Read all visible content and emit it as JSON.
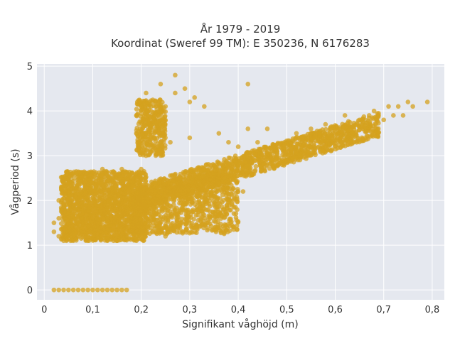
{
  "chart_data": {
    "type": "scatter",
    "title": "År 1979 - 2019",
    "subtitle": "Koordinat (Sweref 99 TM): E 350236, N 6176283",
    "xlabel": "Signifikant våghöjd (m)",
    "ylabel": "Vågperiod (s)",
    "xlim": [
      -0.015,
      0.825
    ],
    "ylim": [
      -0.22,
      5.05
    ],
    "xticks": [
      0,
      0.1,
      0.2,
      0.3,
      0.4,
      0.5,
      0.6,
      0.7,
      0.8
    ],
    "xtick_labels": [
      "0",
      "0,1",
      "0,2",
      "0,3",
      "0,4",
      "0,5",
      "0,6",
      "0,7",
      "0,8"
    ],
    "yticks": [
      0,
      1,
      2,
      3,
      4,
      5
    ],
    "ytick_labels": [
      "0",
      "1",
      "2",
      "3",
      "4",
      "5"
    ],
    "grid": true,
    "marker_color": "#D4A21F",
    "background_color": "#E5E8EF",
    "series": [
      {
        "points": [
          [
            0.02,
            0
          ],
          [
            0.03,
            0
          ],
          [
            0.04,
            0
          ],
          [
            0.05,
            0
          ],
          [
            0.06,
            0
          ],
          [
            0.07,
            0
          ],
          [
            0.08,
            0
          ],
          [
            0.09,
            0
          ],
          [
            0.1,
            0
          ],
          [
            0.11,
            0
          ],
          [
            0.12,
            0
          ],
          [
            0.13,
            0
          ],
          [
            0.14,
            0
          ],
          [
            0.15,
            0
          ],
          [
            0.16,
            0
          ],
          [
            0.17,
            0
          ],
          [
            0.02,
            1.5
          ],
          [
            0.02,
            1.3
          ],
          [
            0.03,
            1.2
          ],
          [
            0.03,
            1.6
          ],
          [
            0.03,
            2.0
          ],
          [
            0.04,
            1.9
          ],
          [
            0.04,
            2.4
          ],
          [
            0.04,
            1.1
          ],
          [
            0.05,
            1.5
          ],
          [
            0.05,
            2.5
          ],
          [
            0.06,
            1.1
          ],
          [
            0.06,
            2.6
          ],
          [
            0.07,
            1.8
          ],
          [
            0.08,
            2.6
          ],
          [
            0.09,
            1.1
          ],
          [
            0.1,
            2.6
          ],
          [
            0.11,
            1.4
          ],
          [
            0.12,
            2.7
          ],
          [
            0.13,
            1.1
          ],
          [
            0.14,
            2.6
          ],
          [
            0.15,
            1.1
          ],
          [
            0.16,
            2.7
          ],
          [
            0.17,
            1.2
          ],
          [
            0.18,
            2.6
          ],
          [
            0.19,
            1.1
          ],
          [
            0.2,
            2.7
          ],
          [
            0.08,
            2.0
          ],
          [
            0.12,
            1.8
          ],
          [
            0.15,
            2.2
          ],
          [
            0.18,
            1.6
          ],
          [
            0.19,
            3.5
          ],
          [
            0.19,
            3.9
          ],
          [
            0.2,
            4.1
          ],
          [
            0.21,
            3.0
          ],
          [
            0.21,
            4.4
          ],
          [
            0.22,
            2.2
          ],
          [
            0.23,
            4.1
          ],
          [
            0.23,
            1.3
          ],
          [
            0.24,
            4.6
          ],
          [
            0.24,
            3.2
          ],
          [
            0.25,
            1.2
          ],
          [
            0.25,
            4.1
          ],
          [
            0.26,
            3.3
          ],
          [
            0.27,
            4.4
          ],
          [
            0.28,
            2.5
          ],
          [
            0.28,
            1.5
          ],
          [
            0.29,
            4.5
          ],
          [
            0.3,
            3.4
          ],
          [
            0.31,
            4.3
          ],
          [
            0.32,
            2.1
          ],
          [
            0.33,
            4.1
          ],
          [
            0.34,
            2.6
          ],
          [
            0.35,
            1.9
          ],
          [
            0.36,
            3.5
          ],
          [
            0.37,
            2.0
          ],
          [
            0.38,
            3.3
          ],
          [
            0.4,
            3.2
          ],
          [
            0.41,
            2.2
          ],
          [
            0.42,
            3.6
          ],
          [
            0.42,
            4.6
          ],
          [
            0.44,
            3.3
          ],
          [
            0.45,
            2.9
          ],
          [
            0.46,
            3.6
          ],
          [
            0.48,
            3.1
          ],
          [
            0.5,
            3.3
          ],
          [
            0.52,
            3.5
          ],
          [
            0.53,
            3.0
          ],
          [
            0.55,
            3.6
          ],
          [
            0.57,
            3.3
          ],
          [
            0.58,
            3.7
          ],
          [
            0.6,
            3.4
          ],
          [
            0.62,
            3.9
          ],
          [
            0.63,
            3.6
          ],
          [
            0.65,
            3.8
          ],
          [
            0.67,
            3.9
          ],
          [
            0.68,
            4.0
          ],
          [
            0.7,
            3.8
          ],
          [
            0.71,
            4.1
          ],
          [
            0.72,
            3.9
          ],
          [
            0.73,
            4.1
          ],
          [
            0.74,
            3.9
          ],
          [
            0.75,
            4.2
          ],
          [
            0.76,
            4.1
          ],
          [
            0.79,
            4.2
          ],
          [
            0.27,
            4.8
          ],
          [
            0.3,
            4.2
          ]
        ]
      }
    ]
  }
}
